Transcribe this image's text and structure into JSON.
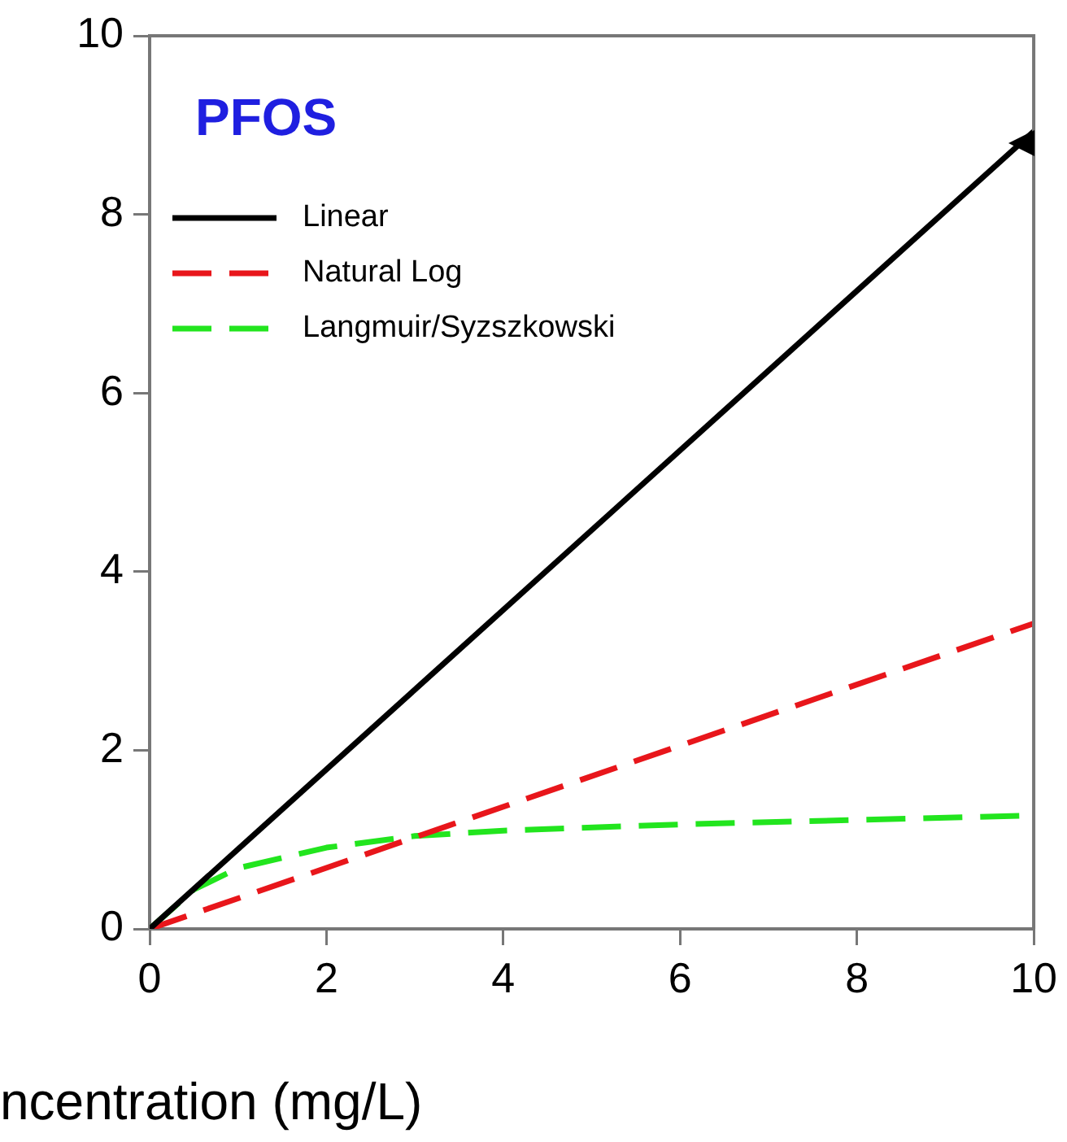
{
  "chart_data": {
    "type": "line",
    "xlabel": "ncentration (mg/L)",
    "annotations": [
      "PFOS"
    ],
    "xlim": [
      0,
      10
    ],
    "xticks": [
      0,
      2,
      4,
      6,
      8,
      10
    ],
    "ylim": [
      0,
      10
    ],
    "yticks": [
      0,
      2,
      4,
      6,
      8,
      10
    ],
    "legend": "top left",
    "marker": "none",
    "grid": false,
    "series": [
      {
        "name": "Linear",
        "color": "#000000",
        "line_style": "solid",
        "x": [
          0,
          10
        ],
        "values": [
          0,
          8.93
        ]
      },
      {
        "name": "Natural Log",
        "color": "#e8161b",
        "line_style": "dashed",
        "x": [
          0,
          10
        ],
        "values": [
          0,
          3.42
        ]
      },
      {
        "name": "Langmuir/Syzszkowski",
        "color": "#22e51e",
        "line_style": "dashed",
        "x": [
          0,
          0.5,
          1,
          2,
          3,
          4,
          6,
          8,
          10
        ],
        "values": [
          0,
          0.44,
          0.68,
          0.91,
          1.04,
          1.1,
          1.17,
          1.22,
          1.27
        ]
      }
    ]
  }
}
